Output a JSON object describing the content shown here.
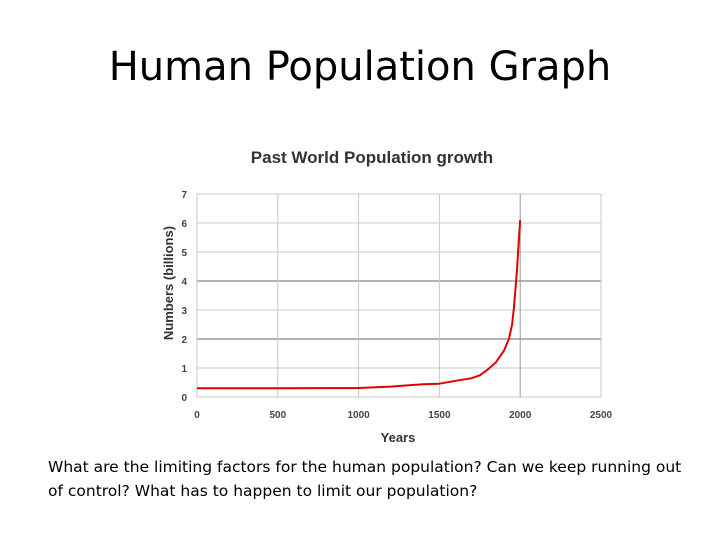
{
  "slide": {
    "title": "Human Population Graph",
    "caption": "What are the limiting factors for the human population? Can we keep running out of control? What has to happen to limit our population?"
  },
  "chart_data": {
    "type": "line",
    "title": "Past World Population growth",
    "xlabel": "Years",
    "ylabel": "Numbers (billions)",
    "xlim": [
      0,
      2500
    ],
    "ylim": [
      0,
      7
    ],
    "x_ticks": [
      "0",
      "500",
      "1000",
      "1500",
      "2000",
      "2500"
    ],
    "y_ticks": [
      "0",
      "1",
      "2",
      "3",
      "4",
      "5",
      "6",
      "7"
    ],
    "grid": true,
    "line_color": "#e00000",
    "series": [
      {
        "x": [
          0,
          500,
          1000,
          1200,
          1300,
          1400,
          1500,
          1600,
          1700,
          1750,
          1800,
          1850,
          1900,
          1930,
          1950,
          1960,
          1970,
          1980,
          1987,
          1995,
          1999,
          2000
        ],
        "y": [
          0.3,
          0.3,
          0.31,
          0.36,
          0.4,
          0.44,
          0.46,
          0.56,
          0.65,
          0.75,
          0.95,
          1.2,
          1.6,
          2.0,
          2.5,
          3.0,
          3.7,
          4.4,
          5.0,
          5.7,
          6.0,
          6.1
        ]
      }
    ]
  }
}
